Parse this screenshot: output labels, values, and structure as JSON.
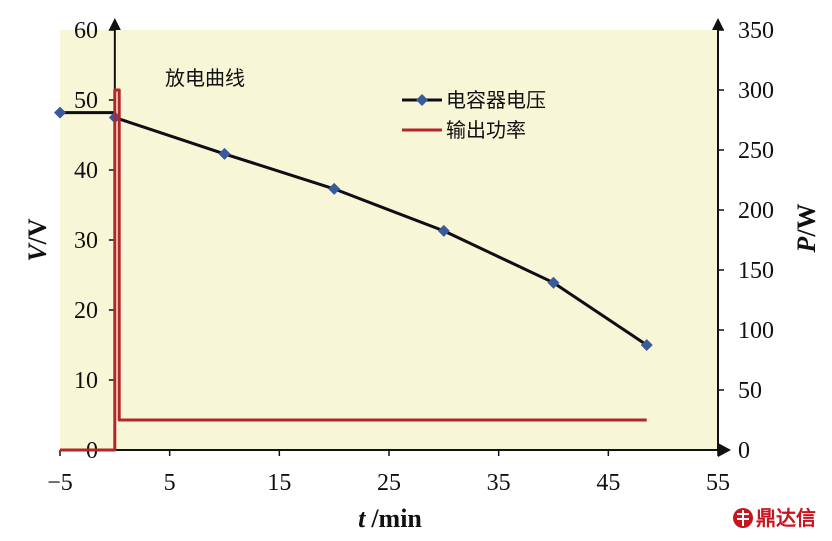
{
  "chart_data": {
    "type": "line",
    "annotation": "放电曲线",
    "xlabel": {
      "italic": "t",
      "rest": "/min"
    },
    "ylabel_left": {
      "italic": "V",
      "rest": "/V"
    },
    "ylabel_right": {
      "italic": "P",
      "rest": "/W"
    },
    "xlim": [
      -5,
      55
    ],
    "ylim_left": [
      0,
      60
    ],
    "ylim_right": [
      0,
      350
    ],
    "x_ticks": [
      "−5",
      "5",
      "15",
      "25",
      "35",
      "45",
      "55"
    ],
    "x_tick_values": [
      -5,
      5,
      15,
      25,
      35,
      45,
      55
    ],
    "y_left_ticks": [
      "0",
      "10",
      "20",
      "30",
      "40",
      "50",
      "60"
    ],
    "y_left_tick_values": [
      0,
      10,
      20,
      30,
      40,
      50,
      60
    ],
    "y_right_ticks": [
      "0",
      "50",
      "100",
      "150",
      "200",
      "250",
      "300",
      "350"
    ],
    "y_right_tick_values": [
      0,
      50,
      100,
      150,
      200,
      250,
      300,
      350
    ],
    "grid": false,
    "legend_position": "top-right",
    "background_color": "#f7f6d7",
    "series": [
      {
        "name": "电容器电压",
        "axis": "left",
        "color": "#0e0e14",
        "marker_color": "#3a5a9a",
        "marker": "diamond",
        "x": [
          -5,
          0,
          0,
          10,
          20,
          30,
          40,
          48.5
        ],
        "y": [
          48.2,
          48.2,
          47.5,
          42.3,
          37.3,
          31.3,
          23.9,
          15.0
        ],
        "marker_indices": [
          0,
          2,
          3,
          4,
          5,
          6,
          7
        ]
      },
      {
        "name": "输出功率",
        "axis": "right",
        "color": "#b5262b",
        "x": [
          -5,
          0,
          0,
          0.4,
          0.4,
          48.5
        ],
        "y": [
          0,
          0,
          300,
          300,
          25,
          25
        ]
      }
    ]
  },
  "watermark": {
    "text": "鼎达信",
    "icon": "logo-seal-icon",
    "color": "#c8141e"
  }
}
